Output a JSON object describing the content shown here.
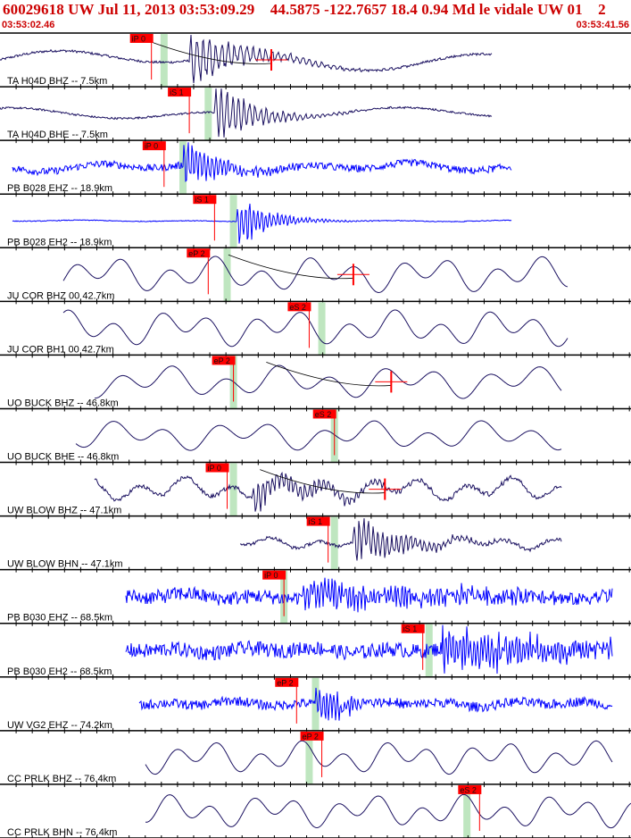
{
  "header": {
    "title": "60029618 UW Jul 11, 2013 03:53:09.29    44.5875 -122.7657 18.4 0.94 Md le vidale UW 01    2",
    "start_time": "03:53:02.46",
    "end_time": "03:53:41.56"
  },
  "chart_data": {
    "type": "line",
    "title": "60029618 UW Jul 11, 2013 03:53:09.29    44.5875 -122.7657 18.4 0.94 Md le vidale UW 01    2",
    "x_range": [
      "03:53:02.46",
      "03:53:41.56"
    ],
    "x_range_seconds": [
      0,
      39.1
    ],
    "grid": false,
    "colors": {
      "velocity": "#1a1060",
      "strain": "#0000ff",
      "pick_fill": "#ff0000",
      "pick_text": "#111111",
      "window": "#bfe6c0",
      "axis": "#000000",
      "title": "#cc0000"
    },
    "series": [
      {
        "label": "TA H04D BHZ -- 7.5km",
        "color": "velocity",
        "freq": 1.0,
        "noise": 0.15,
        "amp": 14,
        "start": 0.0,
        "end": 0.78,
        "onset": 0.3,
        "burst": 26,
        "decay": 0.08,
        "bfreq": 9,
        "window": 0.26,
        "picks": [
          {
            "label": "iP 0",
            "x": 0.24
          }
        ],
        "coda": {
          "x": 0.43,
          "curve": true
        }
      },
      {
        "label": "TA H04D BHE -- 7.5km",
        "color": "velocity",
        "freq": 1.1,
        "noise": 0.12,
        "amp": 8,
        "start": 0.0,
        "end": 0.78,
        "onset": 0.34,
        "burst": 28,
        "decay": 0.06,
        "bfreq": 10,
        "window": 0.33,
        "picks": [
          {
            "label": "iS 1",
            "x": 0.3
          }
        ],
        "coda": null
      },
      {
        "label": "PB B028 EHZ -- 18.9km",
        "color": "strain",
        "freq": 2.0,
        "noise": 0.45,
        "amp": 6,
        "start": 0.02,
        "end": 0.81,
        "onset": 0.29,
        "burst": 24,
        "decay": 0.06,
        "bfreq": 14,
        "window": 0.29,
        "picks": [
          {
            "label": "iP 0",
            "x": 0.26
          }
        ],
        "coda": null
      },
      {
        "label": "PB B028 EH2 -- 18.9km",
        "color": "strain",
        "freq": 2.0,
        "noise": 0.05,
        "amp": 1,
        "start": 0.02,
        "end": 0.81,
        "onset": 0.375,
        "burst": 24,
        "decay": 0.05,
        "bfreq": 14,
        "window": 0.37,
        "picks": [
          {
            "label": "iS 1",
            "x": 0.34
          }
        ],
        "coda": null
      },
      {
        "label": "JU COR BHZ 00 42.7km",
        "color": "velocity",
        "freq": 4.5,
        "noise": 0.0,
        "amp": 24,
        "start": 0.1,
        "end": 0.9,
        "onset": 0.0,
        "burst": 0,
        "decay": 0.1,
        "bfreq": 0,
        "window": 0.36,
        "picks": [
          {
            "label": "eP 2",
            "x": 0.33
          }
        ],
        "coda": {
          "x": 0.56,
          "curve": true
        }
      },
      {
        "label": "JU COR BH1 00 42.7km",
        "color": "velocity",
        "freq": 4.5,
        "noise": 0.0,
        "amp": 24,
        "start": 0.1,
        "end": 0.9,
        "onset": 0.0,
        "burst": 0,
        "decay": 0.1,
        "bfreq": 0,
        "window": 0.51,
        "picks": [
          {
            "label": "eS 2",
            "x": 0.49
          }
        ],
        "coda": null
      },
      {
        "label": "UO BUCK BHZ -- 46.8km",
        "color": "velocity",
        "freq": 4.0,
        "noise": 0.0,
        "amp": 22,
        "start": 0.15,
        "end": 0.89,
        "onset": 0.0,
        "burst": 0,
        "decay": 0.1,
        "bfreq": 0,
        "window": 0.37,
        "picks": [
          {
            "label": "eP 2",
            "x": 0.37
          }
        ],
        "coda": {
          "x": 0.62,
          "curve": true
        }
      },
      {
        "label": "UO BUCK BHE -- 46.8km",
        "color": "velocity",
        "freq": 4.0,
        "noise": 0.0,
        "amp": 20,
        "start": 0.12,
        "end": 0.89,
        "onset": 0.0,
        "burst": 0,
        "decay": 0.1,
        "bfreq": 0,
        "window": 0.53,
        "picks": [
          {
            "label": "eS 2",
            "x": 0.53
          }
        ],
        "coda": null
      },
      {
        "label": "UW BLOW BHZ -- 47.1km",
        "color": "velocity",
        "freq": 4.5,
        "noise": 0.25,
        "amp": 16,
        "start": 0.15,
        "end": 0.89,
        "onset": 0.4,
        "burst": 14,
        "decay": 0.12,
        "bfreq": 12,
        "window": 0.37,
        "picks": [
          {
            "label": "iP 0",
            "x": 0.36
          }
        ],
        "coda": {
          "x": 0.61,
          "curve": true
        }
      },
      {
        "label": "UW BLOW BHN -- 47.1km",
        "color": "velocity",
        "freq": 4.5,
        "noise": 0.2,
        "amp": 8,
        "start": 0.38,
        "end": 0.89,
        "onset": 0.56,
        "burst": 22,
        "decay": 0.08,
        "bfreq": 12,
        "window": 0.53,
        "picks": [
          {
            "label": "iS 1",
            "x": 0.52
          }
        ],
        "coda": null
      },
      {
        "label": "PB B030 EHZ -- 68.5km",
        "color": "strain",
        "freq": 3.0,
        "noise": 0.9,
        "amp": 4,
        "start": 0.2,
        "end": 0.97,
        "onset": 0.48,
        "burst": 14,
        "decay": 0.2,
        "bfreq": 16,
        "window": 0.45,
        "picks": [
          {
            "label": "iP 0",
            "x": 0.45
          }
        ],
        "coda": null
      },
      {
        "label": "PB B030 EH2 -- 68.5km",
        "color": "strain",
        "freq": 3.0,
        "noise": 0.9,
        "amp": 4,
        "start": 0.2,
        "end": 0.97,
        "onset": 0.7,
        "burst": 20,
        "decay": 0.2,
        "bfreq": 16,
        "window": 0.68,
        "picks": [
          {
            "label": "iS 1",
            "x": 0.67
          }
        ],
        "coda": null
      },
      {
        "label": "UW VG2 EHZ -- 74.2km",
        "color": "strain",
        "freq": 3.0,
        "noise": 0.6,
        "amp": 4,
        "start": 0.22,
        "end": 0.97,
        "onset": 0.5,
        "burst": 22,
        "decay": 0.04,
        "bfreq": 16,
        "window": 0.5,
        "picks": [
          {
            "label": "eP 2",
            "x": 0.47
          }
        ],
        "coda": null
      },
      {
        "label": "CC PRLK BHZ -- 76.4km",
        "color": "velocity",
        "freq": 5.0,
        "noise": 0.0,
        "amp": 22,
        "start": 0.23,
        "end": 0.97,
        "onset": 0.0,
        "burst": 0,
        "decay": 0.1,
        "bfreq": 0,
        "window": 0.49,
        "picks": [
          {
            "label": "eP 2",
            "x": 0.51
          }
        ],
        "coda": null
      },
      {
        "label": "CC PRLK BHN -- 76.4km",
        "color": "velocity",
        "freq": 5.0,
        "noise": 0.0,
        "amp": 22,
        "start": 0.23,
        "end": 1.0,
        "onset": 0.0,
        "burst": 0,
        "decay": 0.1,
        "bfreq": 0,
        "window": 0.74,
        "picks": [
          {
            "label": "eS 2",
            "x": 0.76
          }
        ],
        "coda": null
      }
    ]
  }
}
